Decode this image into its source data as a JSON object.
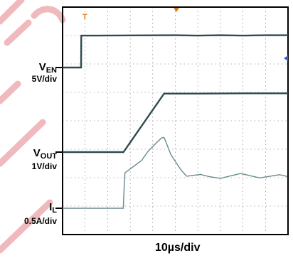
{
  "chart_data": {
    "type": "line",
    "title": "",
    "xlabel": "10µs/div",
    "x_unit": "µs",
    "x_range": [
      0,
      100
    ],
    "grid": true,
    "grid_divisions": {
      "x": 10,
      "y": 8
    },
    "series": [
      {
        "name": "V",
        "name_sub": "EN",
        "scale": "5V/div",
        "color": "#2e4a4f",
        "x": [
          0,
          8.2,
          8.3,
          14,
          50,
          60,
          70,
          80,
          90,
          100
        ],
        "y": [
          0,
          0,
          1.07,
          1.07,
          1.08,
          1.07,
          1.08,
          1.07,
          1.08,
          1.08
        ]
      },
      {
        "name": "V",
        "name_sub": "OUT",
        "scale": "1V/div",
        "color": "#2e4a4f",
        "x": [
          0,
          27,
          45,
          60,
          80,
          100
        ],
        "y": [
          0,
          0,
          1.96,
          1.96,
          1.97,
          1.97
        ]
      },
      {
        "name": "I",
        "name_sub": "L",
        "scale": "0.5A/div",
        "color": "#6a8a8e",
        "x": [
          0,
          27,
          27.5,
          38,
          45,
          48,
          55,
          65,
          80,
          100
        ],
        "y": [
          0,
          0,
          1.1,
          1.95,
          2.3,
          1.8,
          1.1,
          1.05,
          1.1,
          1.05
        ]
      }
    ],
    "markers": [
      "T"
    ]
  },
  "labels": {
    "ven_main": "V",
    "ven_sub": "EN",
    "ven_scale": "5V/div",
    "vout_main": "V",
    "vout_sub": "OUT",
    "vout_scale": "1V/div",
    "il_main": "I",
    "il_sub": "L",
    "il_scale": "0.5A/div",
    "timebase": "10µs/div",
    "trigger_marker": "T"
  },
  "colors": {
    "trace": "#2e4a4f",
    "inductor_trace": "#6a8a8e",
    "grid": "#6f6f6f",
    "frame": "#000000",
    "marker": "#e07b1a",
    "ref_marker": "#3a5ccc",
    "watermark": "#e41e2b"
  }
}
